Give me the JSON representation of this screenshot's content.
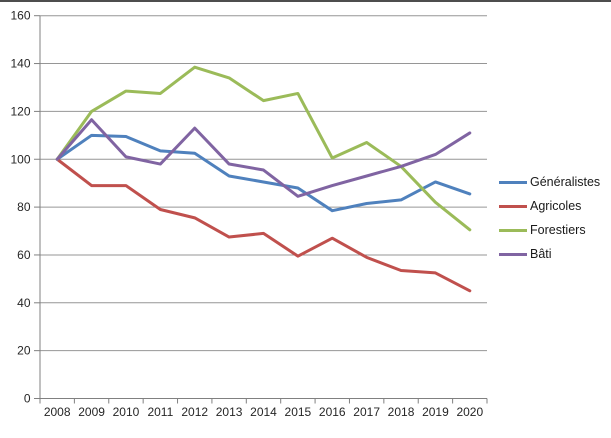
{
  "colors": {
    "top_border": "#4d4d4d",
    "grid": "#969696",
    "axis": "#808080",
    "tick_text": "#262626",
    "background": "#ffffff"
  },
  "chart_data": {
    "type": "line",
    "title": "",
    "xlabel": "",
    "ylabel": "",
    "ylim": [
      0,
      160
    ],
    "yticks": [
      0,
      20,
      40,
      60,
      80,
      100,
      120,
      140,
      160
    ],
    "grid": true,
    "legend_position": "right",
    "categories": [
      "2008",
      "2009",
      "2010",
      "2011",
      "2012",
      "2013",
      "2014",
      "2015",
      "2016",
      "2017",
      "2018",
      "2019",
      "2020"
    ],
    "series": [
      {
        "key": "generalistes",
        "name": "Généralistes",
        "color": "#4F81BD",
        "values": [
          100,
          110,
          109.5,
          103.5,
          102.5,
          93,
          90.5,
          88,
          78.5,
          81.5,
          83,
          90.5,
          85.5
        ]
      },
      {
        "key": "agricoles",
        "name": "Agricoles",
        "color": "#C0504D",
        "values": [
          100,
          89,
          89,
          79,
          75.5,
          67.5,
          69,
          59.5,
          67,
          59,
          53.5,
          52.5,
          45
        ]
      },
      {
        "key": "forestiers",
        "name": "Forestiers",
        "color": "#9BBB59",
        "values": [
          100,
          120,
          128.5,
          127.5,
          138.5,
          134,
          124.5,
          127.5,
          100.5,
          107,
          97,
          82,
          70.5
        ]
      },
      {
        "key": "bati",
        "name": "Bâti",
        "color": "#8064A2",
        "values": [
          100,
          116.5,
          101,
          98,
          113,
          98,
          95.5,
          84.5,
          89,
          93,
          97,
          102,
          111
        ]
      }
    ]
  }
}
